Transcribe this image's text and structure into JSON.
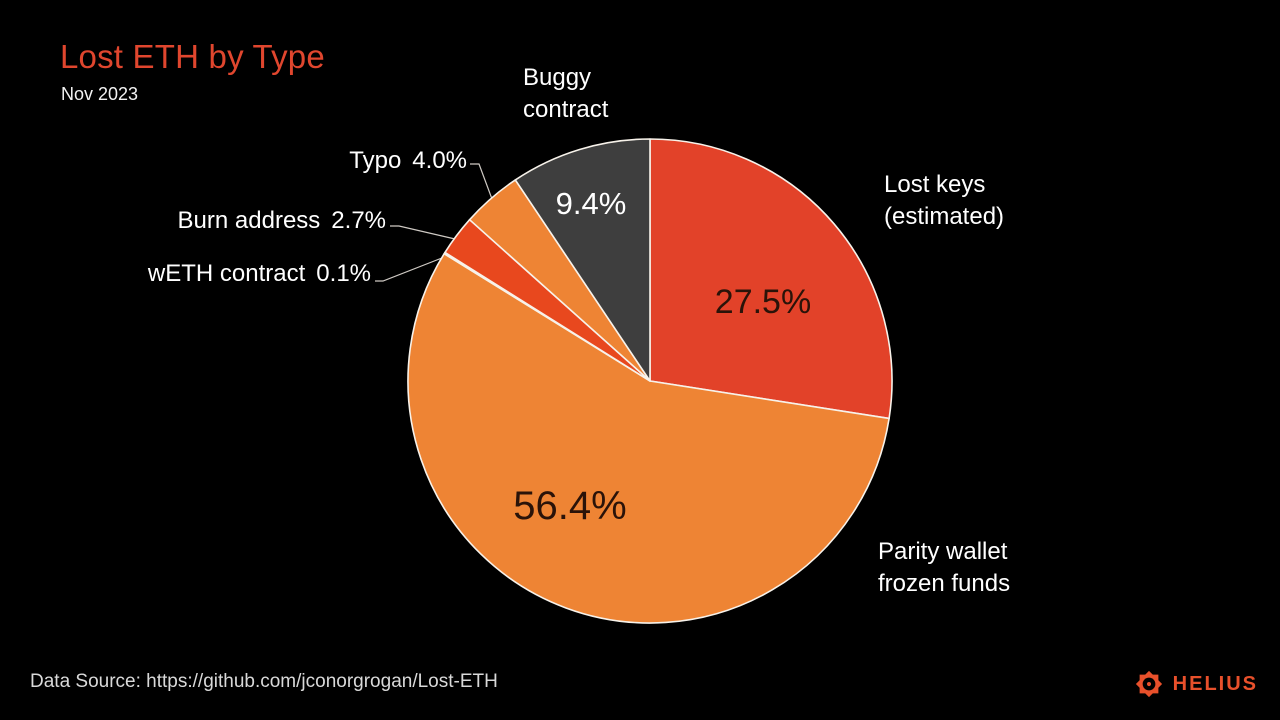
{
  "header": {
    "title": "Lost ETH by Type",
    "subtitle": "Nov 2023",
    "title_color": "#e0462e"
  },
  "footer": {
    "data_source": "Data Source: https://github.com/jconorgrogan/Lost-ETH",
    "brand": "HELIUS",
    "brand_color": "#e8502b",
    "logo_icon": "helius-sunburst-icon"
  },
  "chart_data": {
    "type": "pie",
    "title": "Lost ETH by Type",
    "subtitle": "Nov 2023",
    "unit": "%",
    "rotation": "clockwise-from-top",
    "legend": "none",
    "background": "#000000",
    "slice_divider_color": "#f7f2ea",
    "slices": [
      {
        "name": "lost-keys",
        "label": "Lost keys (estimated)",
        "label_lines": [
          "Lost keys",
          "(estimated)"
        ],
        "value": 27.5,
        "pct_label": "27.5%",
        "color": "#e24229",
        "pct_placement": "inside"
      },
      {
        "name": "parity",
        "label": "Parity wallet frozen funds",
        "label_lines": [
          "Parity wallet",
          "frozen funds"
        ],
        "value": 56.4,
        "pct_label": "56.4%",
        "color": "#ee8434",
        "pct_placement": "inside"
      },
      {
        "name": "weth",
        "label": "wETH contract",
        "label_lines": [
          "wETH contract"
        ],
        "value": 0.1,
        "pct_label": "0.1%",
        "color": "#ee8434",
        "pct_placement": "outside"
      },
      {
        "name": "burn",
        "label": "Burn address",
        "label_lines": [
          "Burn address"
        ],
        "value": 2.7,
        "pct_label": "2.7%",
        "color": "#e8481e",
        "pct_placement": "outside"
      },
      {
        "name": "typo",
        "label": "Typo",
        "label_lines": [
          "Typo"
        ],
        "value": 4.0,
        "pct_label": "4.0%",
        "color": "#ee8434",
        "pct_placement": "outside"
      },
      {
        "name": "buggy",
        "label": "Buggy contract",
        "label_lines": [
          "Buggy",
          "contract"
        ],
        "value": 9.4,
        "pct_label": "9.4%",
        "color": "#3e3e3e",
        "pct_placement": "inside"
      }
    ]
  }
}
